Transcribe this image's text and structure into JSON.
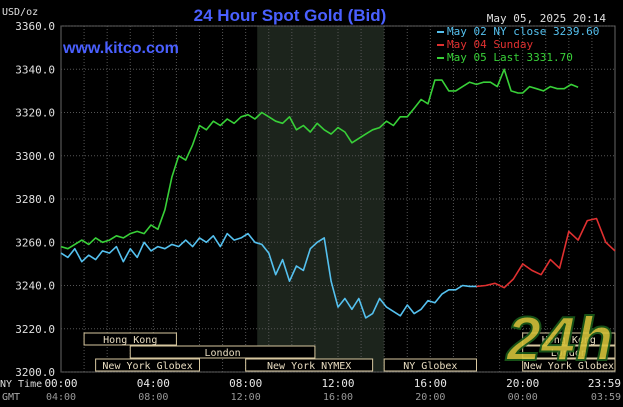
{
  "header": {
    "title": "24 Hour Spot Gold (Bid)",
    "timestamp": "May 05, 2025 20:14",
    "unit": "USD/oz",
    "site": "www.kitco.com"
  },
  "legend": [
    {
      "label": "May 02 NY close 3239.60",
      "color": "#55c1ef"
    },
    {
      "label": "May 04 Sunday",
      "color": "#e03030"
    },
    {
      "label": "May 05 Last 3331.70",
      "color": "#38d038"
    }
  ],
  "axis_labels": {
    "ny_time": "NY Time",
    "gmt": "GMT"
  },
  "sessions": [
    {
      "name": "Hong Kong",
      "row": 0,
      "start": 1.0,
      "end": 5.0
    },
    {
      "name": "London",
      "row": 1,
      "start": 3.0,
      "end": 11.0
    },
    {
      "name": "New York Globex",
      "row": 2,
      "start": 1.5,
      "end": 6.0
    },
    {
      "name": "New York NYMEX",
      "row": 2,
      "start": 8.0,
      "end": 13.5
    },
    {
      "name": "NY Globex",
      "row": 2,
      "start": 14.0,
      "end": 18.0
    },
    {
      "name": "Hong Kong",
      "row": 0,
      "start": 20.0,
      "end": 24.0
    },
    {
      "name": "London",
      "row": 1,
      "start": 20.0,
      "end": 24.0
    },
    {
      "name": "New York Globex",
      "row": 2,
      "start": 20.0,
      "end": 24.0
    }
  ],
  "watermark": "24h",
  "chart_data": {
    "type": "line",
    "title": "24 Hour Spot Gold (Bid)",
    "ylabel": "USD/oz",
    "ylim": [
      3200,
      3360
    ],
    "xlim": [
      0,
      24
    ],
    "grid": true,
    "legend_position": "top-right",
    "shaded_region": [
      8.5,
      14
    ],
    "x_ticks": [
      {
        "x": 0,
        "ny": "00:00",
        "gmt": "04:00"
      },
      {
        "x": 4,
        "ny": "04:00",
        "gmt": "08:00"
      },
      {
        "x": 8,
        "ny": "08:00",
        "gmt": "12:00"
      },
      {
        "x": 12,
        "ny": "12:00",
        "gmt": "16:00"
      },
      {
        "x": 16,
        "ny": "16:00",
        "gmt": "20:00"
      },
      {
        "x": 20,
        "ny": "20:00",
        "gmt": "00:00"
      },
      {
        "x": 24,
        "ny": "23:59",
        "gmt": "03:59"
      }
    ],
    "y_ticks": [
      "3200.0",
      "3220.0",
      "3240.0",
      "3260.0",
      "3280.0",
      "3300.0",
      "3320.0",
      "3340.0",
      "3360.0"
    ],
    "y_tick_values": [
      3200,
      3220,
      3240,
      3260,
      3280,
      3300,
      3320,
      3340,
      3360
    ],
    "series": [
      {
        "name": "May 02 NY close 3239.60",
        "color": "#55c1ef",
        "x": [
          0.0,
          0.3,
          0.6,
          0.9,
          1.2,
          1.5,
          1.8,
          2.1,
          2.4,
          2.7,
          3.0,
          3.3,
          3.6,
          3.9,
          4.2,
          4.5,
          4.8,
          5.1,
          5.4,
          5.7,
          6.0,
          6.3,
          6.6,
          6.9,
          7.2,
          7.5,
          7.8,
          8.1,
          8.4,
          8.7,
          9.0,
          9.3,
          9.6,
          9.9,
          10.2,
          10.5,
          10.8,
          11.1,
          11.4,
          11.7,
          12.0,
          12.3,
          12.6,
          12.9,
          13.2,
          13.5,
          13.8,
          14.1,
          14.4,
          14.7,
          15.0,
          15.3,
          15.6,
          15.9,
          16.2,
          16.5,
          16.8,
          17.1,
          17.4,
          17.7,
          18.0
        ],
        "y": [
          3255,
          3253,
          3257,
          3251,
          3254,
          3252,
          3256,
          3255,
          3258,
          3251,
          3257,
          3253,
          3260,
          3256,
          3258,
          3257,
          3259,
          3258,
          3261,
          3258,
          3262,
          3260,
          3263,
          3258,
          3264,
          3261,
          3262,
          3264,
          3260,
          3259,
          3255,
          3245,
          3252,
          3242,
          3249,
          3247,
          3257,
          3260,
          3262,
          3242,
          3230,
          3234,
          3229,
          3234,
          3225,
          3227,
          3234,
          3230,
          3228,
          3226,
          3231,
          3227,
          3229,
          3233,
          3232,
          3236,
          3238,
          3238,
          3240,
          3239.6,
          3239.6
        ]
      },
      {
        "name": "May 04 Sunday",
        "color": "#e03030",
        "x": [
          18.0,
          18.4,
          18.8,
          19.2,
          19.6,
          20.0,
          20.4,
          20.8,
          21.2,
          21.6,
          22.0,
          22.4,
          22.8,
          23.2,
          23.6,
          24.0
        ],
        "y": [
          3239.6,
          3240,
          3241,
          3239,
          3243,
          3250,
          3247,
          3245,
          3252,
          3248,
          3265,
          3261,
          3270,
          3271,
          3260,
          3256
        ]
      },
      {
        "name": "May 05 Last 3331.70",
        "color": "#38d038",
        "x": [
          0.0,
          0.3,
          0.6,
          0.9,
          1.2,
          1.5,
          1.8,
          2.1,
          2.4,
          2.7,
          3.0,
          3.3,
          3.6,
          3.9,
          4.2,
          4.5,
          4.8,
          5.1,
          5.4,
          5.7,
          6.0,
          6.3,
          6.6,
          6.9,
          7.2,
          7.5,
          7.8,
          8.1,
          8.4,
          8.7,
          9.0,
          9.3,
          9.6,
          9.9,
          10.2,
          10.5,
          10.8,
          11.1,
          11.4,
          11.7,
          12.0,
          12.3,
          12.6,
          12.9,
          13.2,
          13.5,
          13.8,
          14.1,
          14.4,
          14.7,
          15.0,
          15.3,
          15.6,
          15.9,
          16.2,
          16.5,
          16.8,
          17.1,
          17.4,
          17.7,
          18.0,
          18.3,
          18.6,
          18.9,
          19.2,
          19.5,
          19.8,
          20.0,
          20.3,
          20.6,
          20.9,
          21.2,
          21.5,
          21.8,
          22.1,
          22.4
        ],
        "y": [
          3258,
          3257,
          3259,
          3261,
          3259,
          3262,
          3260,
          3261,
          3263,
          3262,
          3264,
          3265,
          3264,
          3268,
          3266,
          3275,
          3290,
          3300,
          3298,
          3305,
          3314,
          3312,
          3316,
          3314,
          3317,
          3315,
          3318,
          3319,
          3317,
          3320,
          3318,
          3316,
          3315,
          3318,
          3312,
          3314,
          3311,
          3315,
          3312,
          3310,
          3313,
          3311,
          3306,
          3308,
          3310,
          3312,
          3313,
          3316,
          3314,
          3318,
          3318,
          3322,
          3326,
          3324,
          3335,
          3335,
          3330,
          3330,
          3332,
          3334,
          3333,
          3334,
          3334,
          3332,
          3340,
          3330,
          3329,
          3329,
          3332,
          3331,
          3330,
          3332,
          3331,
          3331,
          3333,
          3331.7
        ]
      }
    ]
  }
}
